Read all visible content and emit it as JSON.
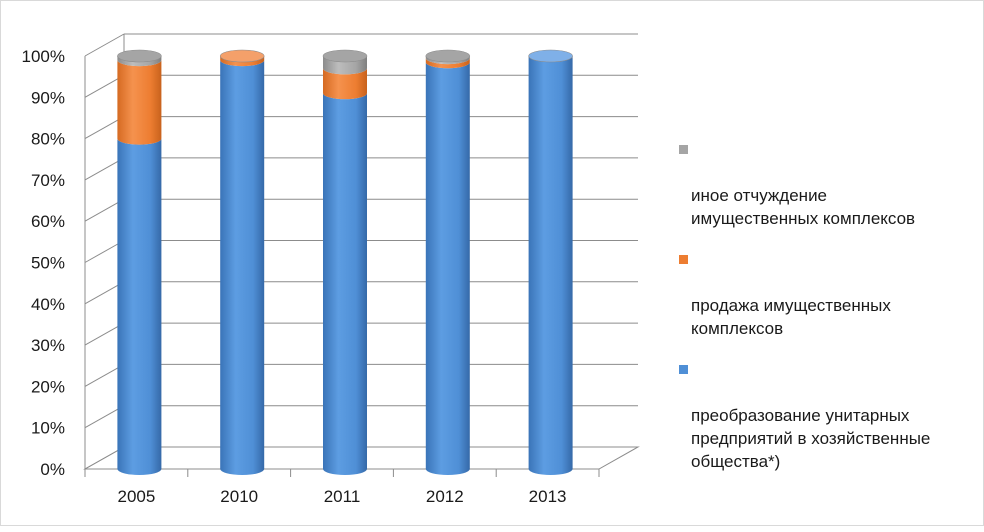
{
  "chart_data": {
    "type": "bar",
    "stacked": true,
    "style": "3d-cylinder",
    "categories": [
      "2005",
      "2010",
      "2011",
      "2012",
      "2013"
    ],
    "series": [
      {
        "name": "преобразование унитарных\nпредприятий в хозяйственные\nобщества*)",
        "color": "#4f8fd6",
        "values": [
          80,
          99,
          91,
          98.5,
          100
        ]
      },
      {
        "name": "продажа имущественных\nкомплексов",
        "color": "#ed7d31",
        "values": [
          19,
          1,
          6,
          1,
          0
        ]
      },
      {
        "name": " иное отчуждение\nимущественных комплексов",
        "color": "#a5a5a5",
        "values": [
          1,
          0,
          3,
          0.5,
          0
        ]
      }
    ],
    "y_ticks": [
      "0%",
      "10%",
      "20%",
      "30%",
      "40%",
      "50%",
      "60%",
      "70%",
      "80%",
      "90%",
      "100%"
    ],
    "ylim": [
      0,
      100
    ],
    "grid": true,
    "legend_position": "right",
    "legend_order": [
      2,
      1,
      0
    ]
  }
}
